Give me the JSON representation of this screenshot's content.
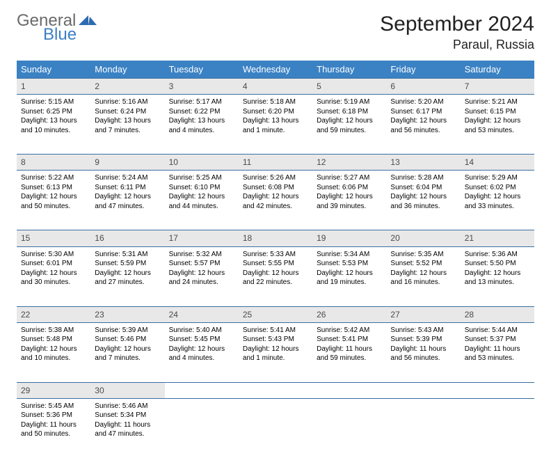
{
  "logo": {
    "general": "General",
    "blue": "Blue"
  },
  "title": "September 2024",
  "location": "Paraul, Russia",
  "header_color": "#3b82c4",
  "row_border_color": "#3b6fa0",
  "daynum_bg": "#e8e8e8",
  "weekdays": [
    "Sunday",
    "Monday",
    "Tuesday",
    "Wednesday",
    "Thursday",
    "Friday",
    "Saturday"
  ],
  "weeks": [
    [
      {
        "n": "1",
        "sr": "Sunrise: 5:15 AM",
        "ss": "Sunset: 6:25 PM",
        "d1": "Daylight: 13 hours",
        "d2": "and 10 minutes."
      },
      {
        "n": "2",
        "sr": "Sunrise: 5:16 AM",
        "ss": "Sunset: 6:24 PM",
        "d1": "Daylight: 13 hours",
        "d2": "and 7 minutes."
      },
      {
        "n": "3",
        "sr": "Sunrise: 5:17 AM",
        "ss": "Sunset: 6:22 PM",
        "d1": "Daylight: 13 hours",
        "d2": "and 4 minutes."
      },
      {
        "n": "4",
        "sr": "Sunrise: 5:18 AM",
        "ss": "Sunset: 6:20 PM",
        "d1": "Daylight: 13 hours",
        "d2": "and 1 minute."
      },
      {
        "n": "5",
        "sr": "Sunrise: 5:19 AM",
        "ss": "Sunset: 6:18 PM",
        "d1": "Daylight: 12 hours",
        "d2": "and 59 minutes."
      },
      {
        "n": "6",
        "sr": "Sunrise: 5:20 AM",
        "ss": "Sunset: 6:17 PM",
        "d1": "Daylight: 12 hours",
        "d2": "and 56 minutes."
      },
      {
        "n": "7",
        "sr": "Sunrise: 5:21 AM",
        "ss": "Sunset: 6:15 PM",
        "d1": "Daylight: 12 hours",
        "d2": "and 53 minutes."
      }
    ],
    [
      {
        "n": "8",
        "sr": "Sunrise: 5:22 AM",
        "ss": "Sunset: 6:13 PM",
        "d1": "Daylight: 12 hours",
        "d2": "and 50 minutes."
      },
      {
        "n": "9",
        "sr": "Sunrise: 5:24 AM",
        "ss": "Sunset: 6:11 PM",
        "d1": "Daylight: 12 hours",
        "d2": "and 47 minutes."
      },
      {
        "n": "10",
        "sr": "Sunrise: 5:25 AM",
        "ss": "Sunset: 6:10 PM",
        "d1": "Daylight: 12 hours",
        "d2": "and 44 minutes."
      },
      {
        "n": "11",
        "sr": "Sunrise: 5:26 AM",
        "ss": "Sunset: 6:08 PM",
        "d1": "Daylight: 12 hours",
        "d2": "and 42 minutes."
      },
      {
        "n": "12",
        "sr": "Sunrise: 5:27 AM",
        "ss": "Sunset: 6:06 PM",
        "d1": "Daylight: 12 hours",
        "d2": "and 39 minutes."
      },
      {
        "n": "13",
        "sr": "Sunrise: 5:28 AM",
        "ss": "Sunset: 6:04 PM",
        "d1": "Daylight: 12 hours",
        "d2": "and 36 minutes."
      },
      {
        "n": "14",
        "sr": "Sunrise: 5:29 AM",
        "ss": "Sunset: 6:02 PM",
        "d1": "Daylight: 12 hours",
        "d2": "and 33 minutes."
      }
    ],
    [
      {
        "n": "15",
        "sr": "Sunrise: 5:30 AM",
        "ss": "Sunset: 6:01 PM",
        "d1": "Daylight: 12 hours",
        "d2": "and 30 minutes."
      },
      {
        "n": "16",
        "sr": "Sunrise: 5:31 AM",
        "ss": "Sunset: 5:59 PM",
        "d1": "Daylight: 12 hours",
        "d2": "and 27 minutes."
      },
      {
        "n": "17",
        "sr": "Sunrise: 5:32 AM",
        "ss": "Sunset: 5:57 PM",
        "d1": "Daylight: 12 hours",
        "d2": "and 24 minutes."
      },
      {
        "n": "18",
        "sr": "Sunrise: 5:33 AM",
        "ss": "Sunset: 5:55 PM",
        "d1": "Daylight: 12 hours",
        "d2": "and 22 minutes."
      },
      {
        "n": "19",
        "sr": "Sunrise: 5:34 AM",
        "ss": "Sunset: 5:53 PM",
        "d1": "Daylight: 12 hours",
        "d2": "and 19 minutes."
      },
      {
        "n": "20",
        "sr": "Sunrise: 5:35 AM",
        "ss": "Sunset: 5:52 PM",
        "d1": "Daylight: 12 hours",
        "d2": "and 16 minutes."
      },
      {
        "n": "21",
        "sr": "Sunrise: 5:36 AM",
        "ss": "Sunset: 5:50 PM",
        "d1": "Daylight: 12 hours",
        "d2": "and 13 minutes."
      }
    ],
    [
      {
        "n": "22",
        "sr": "Sunrise: 5:38 AM",
        "ss": "Sunset: 5:48 PM",
        "d1": "Daylight: 12 hours",
        "d2": "and 10 minutes."
      },
      {
        "n": "23",
        "sr": "Sunrise: 5:39 AM",
        "ss": "Sunset: 5:46 PM",
        "d1": "Daylight: 12 hours",
        "d2": "and 7 minutes."
      },
      {
        "n": "24",
        "sr": "Sunrise: 5:40 AM",
        "ss": "Sunset: 5:45 PM",
        "d1": "Daylight: 12 hours",
        "d2": "and 4 minutes."
      },
      {
        "n": "25",
        "sr": "Sunrise: 5:41 AM",
        "ss": "Sunset: 5:43 PM",
        "d1": "Daylight: 12 hours",
        "d2": "and 1 minute."
      },
      {
        "n": "26",
        "sr": "Sunrise: 5:42 AM",
        "ss": "Sunset: 5:41 PM",
        "d1": "Daylight: 11 hours",
        "d2": "and 59 minutes."
      },
      {
        "n": "27",
        "sr": "Sunrise: 5:43 AM",
        "ss": "Sunset: 5:39 PM",
        "d1": "Daylight: 11 hours",
        "d2": "and 56 minutes."
      },
      {
        "n": "28",
        "sr": "Sunrise: 5:44 AM",
        "ss": "Sunset: 5:37 PM",
        "d1": "Daylight: 11 hours",
        "d2": "and 53 minutes."
      }
    ],
    [
      {
        "n": "29",
        "sr": "Sunrise: 5:45 AM",
        "ss": "Sunset: 5:36 PM",
        "d1": "Daylight: 11 hours",
        "d2": "and 50 minutes."
      },
      {
        "n": "30",
        "sr": "Sunrise: 5:46 AM",
        "ss": "Sunset: 5:34 PM",
        "d1": "Daylight: 11 hours",
        "d2": "and 47 minutes."
      },
      null,
      null,
      null,
      null,
      null
    ]
  ]
}
